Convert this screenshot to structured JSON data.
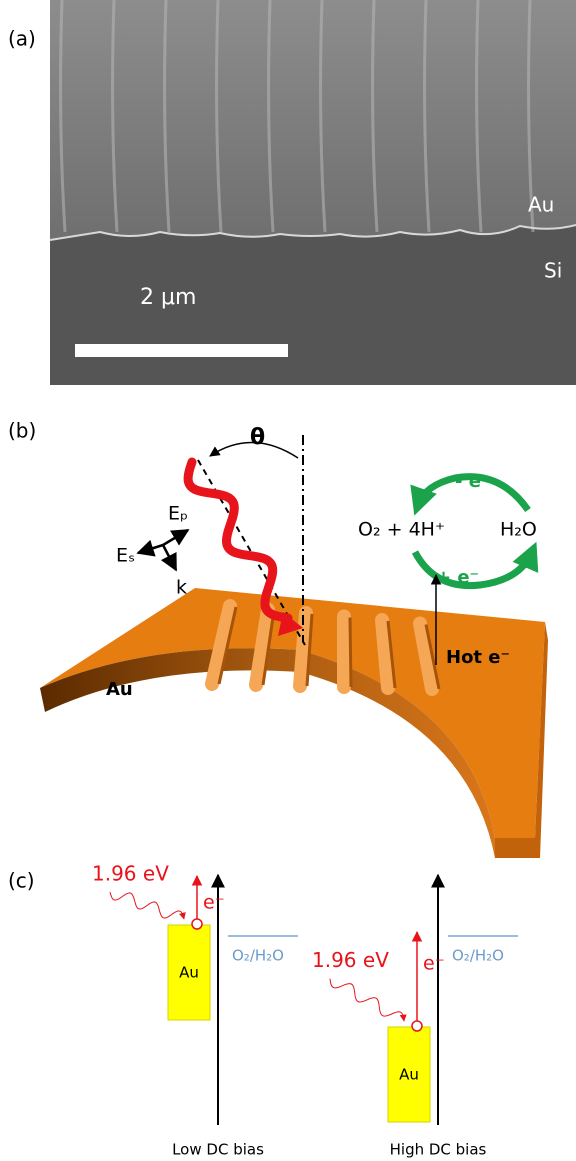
{
  "panel_a": {
    "label": "(a)",
    "layer_top": "Au",
    "layer_bottom": "Si",
    "scale_bar": "2 μm"
  },
  "panel_b": {
    "label": "(b)",
    "angle": "θ",
    "field_p": "Eₚ",
    "field_s": "Eₛ",
    "wavevector": "k",
    "reactants": "O₂ + 4H⁺",
    "product": "H₂O",
    "loss": "- e⁻",
    "gain": "+ e⁻",
    "metal": "Au",
    "hot_electrons": "Hot e⁻"
  },
  "panel_c": {
    "label": "(c)",
    "diagrams": [
      {
        "photon": "1.96 eV",
        "electron": "e⁻",
        "redox": "O₂/H₂O",
        "metal": "Au",
        "bias": "Low DC bias"
      },
      {
        "photon": "1.96 eV",
        "electron": "e⁻",
        "redox": "O₂/H₂O",
        "metal": "Au",
        "bias": "High DC bias"
      }
    ]
  }
}
